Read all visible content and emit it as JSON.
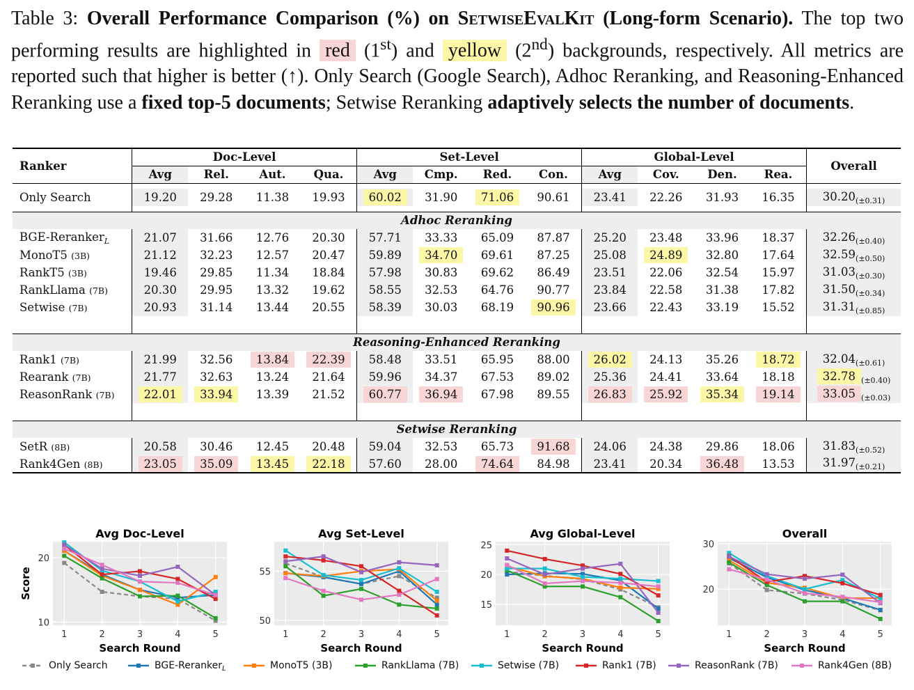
{
  "caption": {
    "label": "Table 3:",
    "title_pre": "Overall Performance Comparison (%) on ",
    "title_kit": "SetwiseEvalKit",
    "title_post": " (Long-form Scenario).",
    "s1": "The top two performing results are highlighted in",
    "red": "red",
    "first": "(1",
    "first_sup": "st",
    "and": ") and",
    "yellow": "yellow",
    "second": "(2",
    "second_sup": "nd",
    "s2": ") backgrounds, respectively. All metrics are reported such that higher is better (↑). Only Search (Google Search), Adhoc Reranking, and Reasoning-Enhanced Reranking use a",
    "bold1": "fixed top-5 documents",
    "s3": "; Setwise Reranking",
    "bold2": "adaptively selects the number of documents",
    "s4": "."
  },
  "table": {
    "header": {
      "ranker": "Ranker",
      "doc": "Doc-Level",
      "set": "Set-Level",
      "global": "Global-Level",
      "overall": "Overall",
      "doc_cols": [
        "Avg",
        "Rel.",
        "Aut.",
        "Qua."
      ],
      "set_cols": [
        "Avg",
        "Cmp.",
        "Red.",
        "Con."
      ],
      "global_cols": [
        "Avg",
        "Cov.",
        "Den.",
        "Rea."
      ]
    },
    "groups": [
      {
        "name": "",
        "rows": [
          {
            "name": "Only Search",
            "size": "",
            "sub": "",
            "v": [
              "19.20",
              "29.28",
              "11.38",
              "19.93",
              "60.02",
              "31.90",
              "71.06",
              "90.61",
              "23.41",
              "22.26",
              "31.93",
              "16.35"
            ],
            "overall": "30.20",
            "pm": "(±0.31)",
            "hl": {
              "4": "y",
              "6": "y"
            }
          }
        ]
      },
      {
        "name": "Adhoc Reranking",
        "rows": [
          {
            "name": "BGE-Reranker",
            "size": "",
            "sub": "L",
            "v": [
              "21.07",
              "31.66",
              "12.76",
              "20.30",
              "57.71",
              "33.33",
              "65.09",
              "87.87",
              "25.20",
              "23.48",
              "33.96",
              "18.37"
            ],
            "overall": "32.26",
            "pm": "(±0.40)",
            "hl": {}
          },
          {
            "name": "MonoT5",
            "size": "(3B)",
            "sub": "",
            "v": [
              "21.12",
              "32.23",
              "12.57",
              "20.47",
              "59.89",
              "34.70",
              "69.61",
              "87.25",
              "25.08",
              "24.89",
              "32.80",
              "17.64"
            ],
            "overall": "32.59",
            "pm": "(±0.50)",
            "hl": {
              "5": "y",
              "9": "y"
            }
          },
          {
            "name": "RankT5",
            "size": "(3B)",
            "sub": "",
            "v": [
              "19.46",
              "29.85",
              "11.34",
              "18.84",
              "57.98",
              "30.83",
              "69.62",
              "86.49",
              "23.51",
              "22.06",
              "32.54",
              "15.97"
            ],
            "overall": "31.03",
            "pm": "(±0.30)",
            "hl": {}
          },
          {
            "name": "RankLlama",
            "size": "(7B)",
            "sub": "",
            "v": [
              "20.30",
              "29.95",
              "13.32",
              "19.62",
              "58.55",
              "32.53",
              "64.76",
              "90.77",
              "23.84",
              "22.58",
              "31.38",
              "17.82"
            ],
            "overall": "31.50",
            "pm": "(±0.34)",
            "hl": {}
          },
          {
            "name": "Setwise",
            "size": "(7B)",
            "sub": "",
            "v": [
              "20.93",
              "31.14",
              "13.44",
              "20.55",
              "58.39",
              "30.03",
              "68.19",
              "90.96",
              "23.66",
              "22.43",
              "33.19",
              "15.52"
            ],
            "overall": "31.31",
            "pm": "(±0.85)",
            "hl": {
              "7": "y"
            }
          }
        ]
      },
      {
        "name": "Reasoning-Enhanced Reranking",
        "rows": [
          {
            "name": "Rank1",
            "size": "(7B)",
            "sub": "",
            "v": [
              "21.99",
              "32.56",
              "13.84",
              "22.39",
              "58.48",
              "33.51",
              "65.95",
              "88.00",
              "26.02",
              "24.13",
              "35.26",
              "18.72"
            ],
            "overall": "32.04",
            "pm": "(±0.61)",
            "hl": {
              "2": "r",
              "3": "r",
              "8": "y",
              "11": "y"
            }
          },
          {
            "name": "Rearank",
            "size": "(7B)",
            "sub": "",
            "v": [
              "21.77",
              "32.63",
              "13.24",
              "21.64",
              "59.96",
              "34.37",
              "67.53",
              "89.02",
              "25.36",
              "24.41",
              "33.64",
              "18.18"
            ],
            "overall": "32.78",
            "pm": "(±0.40)",
            "hl": {
              "o": "y"
            }
          },
          {
            "name": "ReasonRank",
            "size": "(7B)",
            "sub": "",
            "v": [
              "22.01",
              "33.94",
              "13.39",
              "21.52",
              "60.77",
              "36.94",
              "67.98",
              "89.55",
              "26.83",
              "25.92",
              "35.34",
              "19.14"
            ],
            "overall": "33.05",
            "pm": "(±0.03)",
            "hl": {
              "0": "y",
              "1": "y",
              "4": "r",
              "5": "r",
              "8": "r",
              "9": "r",
              "10": "y",
              "11": "r",
              "o": "r"
            }
          }
        ]
      },
      {
        "name": "Setwise Reranking",
        "rows": [
          {
            "name": "SetR",
            "size": "(8B)",
            "sub": "",
            "v": [
              "20.58",
              "30.46",
              "12.45",
              "20.48",
              "59.04",
              "32.53",
              "65.73",
              "91.68",
              "24.06",
              "24.38",
              "29.86",
              "18.06"
            ],
            "overall": "31.83",
            "pm": "(±0.52)",
            "hl": {
              "7": "r"
            }
          },
          {
            "name": "Rank4Gen",
            "size": "(8B)",
            "sub": "",
            "v": [
              "23.05",
              "35.09",
              "13.45",
              "22.18",
              "57.60",
              "28.00",
              "74.64",
              "84.98",
              "23.41",
              "20.34",
              "36.48",
              "13.53"
            ],
            "overall": "31.97",
            "pm": "(±0.21)",
            "hl": {
              "0": "r",
              "1": "r",
              "2": "y",
              "3": "y",
              "6": "r",
              "10": "r"
            }
          }
        ]
      }
    ]
  },
  "chart_data": [
    {
      "type": "line",
      "title": "Avg Doc-Level",
      "xlabel": "Search Round",
      "ylabel": "Score",
      "x": [
        1,
        2,
        3,
        4,
        5
      ],
      "ylim": [
        9.5,
        22.5
      ],
      "yticks": [
        10,
        20
      ],
      "series": [
        {
          "name": "Only Search",
          "values": [
            19.2,
            14.7,
            14.0,
            13.6,
            10.2
          ]
        },
        {
          "name": "BGE-Reranker_L",
          "values": [
            21.1,
            17.4,
            15.0,
            13.8,
            14.2
          ]
        },
        {
          "name": "MonoT5 (3B)",
          "values": [
            21.1,
            17.2,
            15.0,
            12.7,
            17.0
          ]
        },
        {
          "name": "RankLlama (7B)",
          "values": [
            20.3,
            16.8,
            14.0,
            14.1,
            10.6
          ]
        },
        {
          "name": "Setwise (7B)",
          "values": [
            22.4,
            18.0,
            16.3,
            13.2,
            14.7
          ]
        },
        {
          "name": "Rank1 (7B)",
          "values": [
            22.0,
            17.4,
            17.9,
            16.7,
            13.6
          ]
        },
        {
          "name": "ReasonRank (7B)",
          "values": [
            22.0,
            18.3,
            17.2,
            18.6,
            14.2
          ]
        },
        {
          "name": "Rank4Gen (8B)",
          "values": [
            21.4,
            18.9,
            16.3,
            16.1,
            14.2
          ]
        }
      ]
    },
    {
      "type": "line",
      "title": "Avg Set-Level",
      "xlabel": "Search Round",
      "ylabel": "",
      "x": [
        1,
        2,
        3,
        4,
        5
      ],
      "ylim": [
        49.5,
        58
      ],
      "yticks": [
        50,
        55
      ],
      "series": [
        {
          "name": "Only Search",
          "values": [
            55.8,
            54.4,
            53.7,
            54.5,
            52.3
          ]
        },
        {
          "name": "BGE-Reranker_L",
          "values": [
            54.8,
            54.4,
            53.7,
            55.0,
            51.6
          ]
        },
        {
          "name": "MonoT5 (3B)",
          "values": [
            54.8,
            54.5,
            55.0,
            55.2,
            52.0
          ]
        },
        {
          "name": "RankLlama (7B)",
          "values": [
            55.5,
            52.5,
            53.2,
            51.6,
            51.2
          ]
        },
        {
          "name": "Setwise (7B)",
          "values": [
            57.1,
            54.6,
            54.1,
            55.3,
            52.9
          ]
        },
        {
          "name": "Rank1 (7B)",
          "values": [
            56.5,
            56.1,
            55.5,
            53.0,
            50.5
          ]
        },
        {
          "name": "ReasonRank (7B)",
          "values": [
            56.0,
            56.5,
            54.9,
            55.9,
            55.6
          ]
        },
        {
          "name": "Rank4Gen (8B)",
          "values": [
            54.3,
            53.0,
            52.1,
            52.6,
            54.2
          ]
        }
      ]
    },
    {
      "type": "line",
      "title": "Avg Global-Level",
      "xlabel": "Search Round",
      "ylabel": "",
      "x": [
        1,
        2,
        3,
        4,
        5
      ],
      "ylim": [
        11.5,
        25.5
      ],
      "yticks": [
        15,
        20,
        25
      ],
      "series": [
        {
          "name": "Only Search",
          "values": [
            20.5,
            19.8,
            19.2,
            17.5,
            14.5
          ]
        },
        {
          "name": "BGE-Reranker_L",
          "values": [
            20.0,
            20.2,
            20.1,
            19.0,
            14.3
          ]
        },
        {
          "name": "MonoT5 (3B)",
          "values": [
            21.4,
            19.7,
            19.3,
            17.8,
            17.6
          ]
        },
        {
          "name": "RankLlama (7B)",
          "values": [
            20.7,
            18.0,
            18.0,
            16.2,
            12.2
          ]
        },
        {
          "name": "Setwise (7B)",
          "values": [
            21.0,
            21.0,
            19.6,
            19.3,
            18.9
          ]
        },
        {
          "name": "Rank1 (7B)",
          "values": [
            24.0,
            22.6,
            21.5,
            20.1,
            16.5
          ]
        },
        {
          "name": "ReasonRank (7B)",
          "values": [
            22.7,
            20.0,
            21.0,
            21.8,
            13.6
          ]
        },
        {
          "name": "Rank4Gen (8B)",
          "values": [
            21.6,
            18.5,
            18.9,
            18.6,
            18.0
          ]
        }
      ]
    },
    {
      "type": "line",
      "title": "Overall",
      "xlabel": "Search Round",
      "ylabel": "",
      "x": [
        1,
        2,
        3,
        4,
        5
      ],
      "ylim": [
        12,
        30.5
      ],
      "yticks": [
        20,
        30
      ],
      "series": [
        {
          "name": "Only Search",
          "values": [
            25.7,
            19.8,
            19.0,
            17.6,
            15.3
          ]
        },
        {
          "name": "BGE-Reranker_L",
          "values": [
            26.9,
            22.6,
            19.8,
            18.0,
            15.4
          ]
        },
        {
          "name": "MonoT5 (3B)",
          "values": [
            26.4,
            21.4,
            20.3,
            18.0,
            18.0
          ]
        },
        {
          "name": "RankLlama (7B)",
          "values": [
            25.9,
            20.9,
            17.3,
            17.3,
            13.4
          ]
        },
        {
          "name": "Setwise (7B)",
          "values": [
            28.0,
            22.9,
            20.0,
            22.0,
            17.9
          ]
        },
        {
          "name": "Rank1 (7B)",
          "values": [
            27.3,
            21.6,
            22.9,
            21.3,
            18.7
          ]
        },
        {
          "name": "ReasonRank (7B)",
          "values": [
            27.2,
            23.3,
            22.3,
            23.2,
            16.9
          ]
        },
        {
          "name": "Rank4Gen (8B)",
          "values": [
            24.4,
            22.1,
            19.1,
            18.3,
            17.1
          ]
        }
      ]
    }
  ],
  "legend": {
    "items": [
      {
        "name": "Only Search",
        "color": "#888888",
        "dash": true,
        "sub": ""
      },
      {
        "name": "BGE-Reranker",
        "color": "#1f77b4",
        "dash": false,
        "sub": "L"
      },
      {
        "name": "MonoT5 (3B)",
        "color": "#ff7f0e",
        "dash": false,
        "sub": ""
      },
      {
        "name": "RankLlama (7B)",
        "color": "#2ca02c",
        "dash": false,
        "sub": ""
      },
      {
        "name": "Setwise (7B)",
        "color": "#17becf",
        "dash": false,
        "sub": ""
      },
      {
        "name": "Rank1 (7B)",
        "color": "#d62728",
        "dash": false,
        "sub": ""
      },
      {
        "name": "ReasonRank (7B)",
        "color": "#9467bd",
        "dash": false,
        "sub": ""
      },
      {
        "name": "Rank4Gen (8B)",
        "color": "#e377c2",
        "dash": false,
        "sub": ""
      }
    ]
  }
}
